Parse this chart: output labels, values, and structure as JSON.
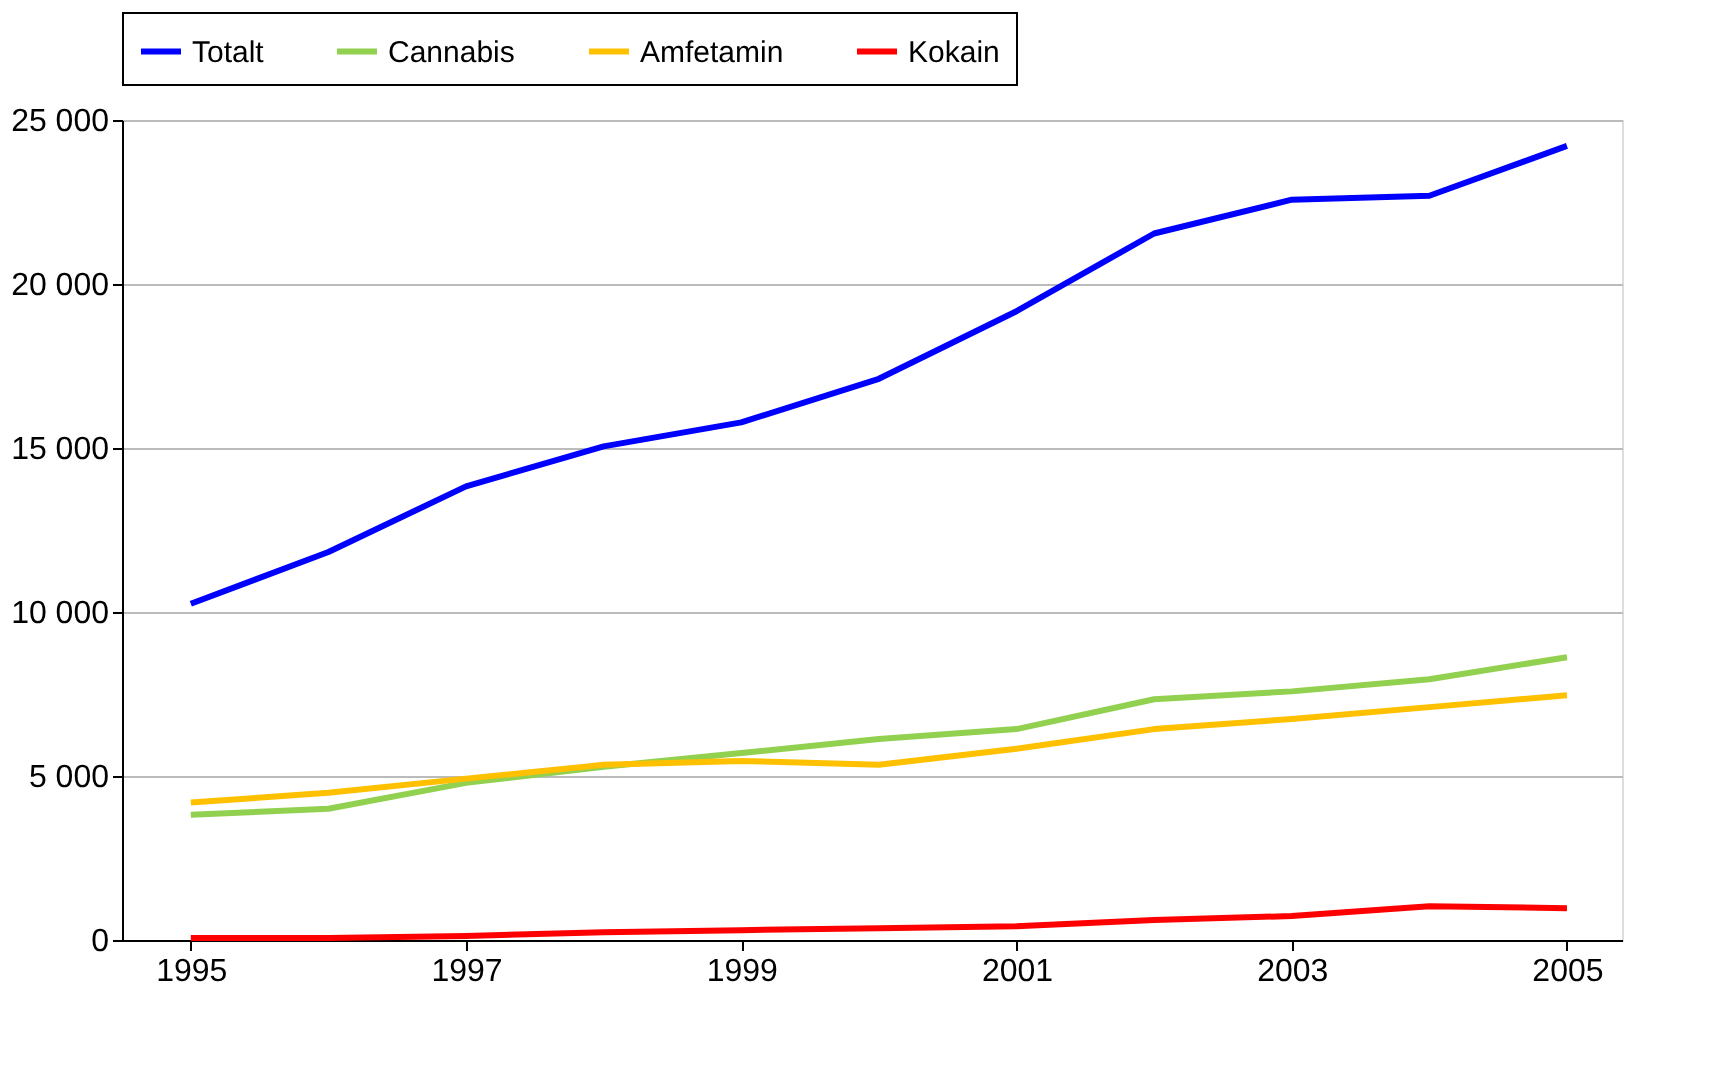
{
  "chart_data": {
    "type": "line",
    "x": [
      1995,
      1996,
      1997,
      1998,
      1999,
      2000,
      2001,
      2002,
      2003,
      2004,
      2005
    ],
    "series": [
      {
        "name": "Totalt",
        "color": "#0000ff",
        "values": [
          10250,
          11830,
          13830,
          15050,
          15780,
          17110,
          19170,
          21540,
          22570,
          22690,
          24210
        ]
      },
      {
        "name": "Cannabis",
        "color": "#92d050",
        "values": [
          3820,
          4000,
          4790,
          5280,
          5700,
          6130,
          6430,
          7340,
          7580,
          7950,
          8620
        ]
      },
      {
        "name": "Amfetamin",
        "color": "#ffc000",
        "values": [
          4190,
          4490,
          4920,
          5340,
          5460,
          5340,
          5830,
          6430,
          6740,
          7100,
          7460
        ]
      },
      {
        "name": "Kokain",
        "color": "#ff0000",
        "values": [
          60,
          60,
          120,
          240,
          300,
          360,
          420,
          610,
          730,
          1030,
          970
        ]
      }
    ],
    "xlim": [
      1994.5,
      2005.4
    ],
    "xticks": [
      1995,
      1997,
      1999,
      2001,
      2003,
      2005
    ],
    "ylim": [
      0,
      25000
    ],
    "yticks": [
      {
        "value": 0,
        "label": "0"
      },
      {
        "value": 5000,
        "label": "5 000"
      },
      {
        "value": 10000,
        "label": "10 000"
      },
      {
        "value": 15000,
        "label": "15 000"
      },
      {
        "value": 20000,
        "label": "20 000"
      },
      {
        "value": 25000,
        "label": "25 000"
      }
    ],
    "grid": "y",
    "legend": "top",
    "marker": "none",
    "line_style": "solid"
  }
}
